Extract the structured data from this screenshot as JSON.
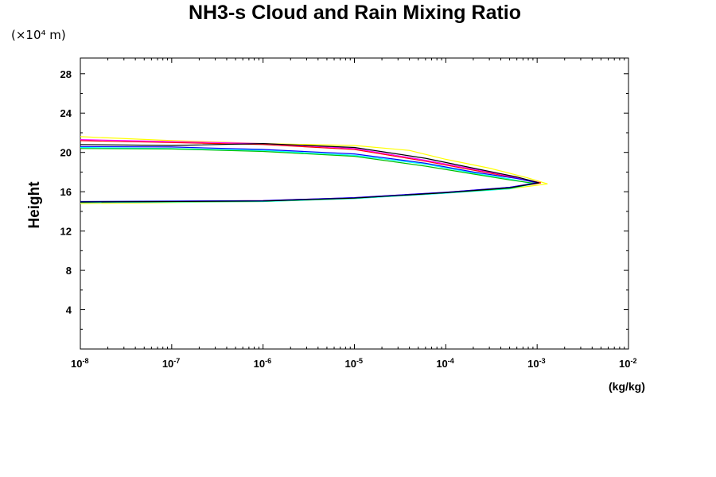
{
  "chart_data": {
    "type": "line",
    "title": "NH3-s Cloud and Rain Mixing Ratio",
    "ylabel": "Height",
    "y_unit": "(×10⁴ m)",
    "x_unit": "(kg/kg)",
    "x_scale": "log",
    "xlim": [
      1e-08,
      0.01
    ],
    "ylim": [
      0,
      29.6
    ],
    "x_tick_labels": [
      {
        "value": 1e-08,
        "base": "10",
        "exp": "-8"
      },
      {
        "value": 1e-07,
        "base": "10",
        "exp": "-7"
      },
      {
        "value": 1e-06,
        "base": "10",
        "exp": "-6"
      },
      {
        "value": 1e-05,
        "base": "10",
        "exp": "-5"
      },
      {
        "value": 0.0001,
        "base": "10",
        "exp": "-4"
      },
      {
        "value": 0.001,
        "base": "10",
        "exp": "-3"
      },
      {
        "value": 0.01,
        "base": "10",
        "exp": "-2"
      }
    ],
    "y_ticks": [
      4,
      8,
      12,
      16,
      20,
      24,
      28
    ],
    "grid": false,
    "legend": "none",
    "series": [
      {
        "color": "#ffff00",
        "points": [
          [
            1e-08,
            14.8
          ],
          [
            1e-06,
            15.0
          ],
          [
            1e-05,
            15.3
          ],
          [
            0.0001,
            15.9
          ],
          [
            0.0005,
            16.3
          ],
          [
            0.0013,
            16.8
          ],
          [
            0.0008,
            17.4
          ],
          [
            0.0003,
            18.4
          ],
          [
            0.0001,
            19.3
          ],
          [
            4e-05,
            20.2
          ],
          [
            1e-05,
            20.7
          ],
          [
            1e-06,
            20.9
          ],
          [
            1e-07,
            21.2
          ],
          [
            1e-08,
            21.6
          ]
        ]
      },
      {
        "color": "#ff0000",
        "points": [
          [
            1e-08,
            14.9
          ],
          [
            1e-06,
            15.05
          ],
          [
            1e-05,
            15.35
          ],
          [
            0.0001,
            15.9
          ],
          [
            0.0005,
            16.4
          ],
          [
            0.0011,
            16.9
          ],
          [
            0.0006,
            17.4
          ],
          [
            0.0002,
            18.2
          ],
          [
            6e-05,
            19.1
          ],
          [
            1e-05,
            20.3
          ],
          [
            1e-06,
            20.8
          ],
          [
            1e-07,
            21.0
          ],
          [
            1e-08,
            21.2
          ]
        ]
      },
      {
        "color": "#ff00ff",
        "points": [
          [
            1e-08,
            14.95
          ],
          [
            1e-06,
            15.1
          ],
          [
            1e-05,
            15.4
          ],
          [
            0.0001,
            15.95
          ],
          [
            0.0005,
            16.45
          ],
          [
            0.00105,
            16.95
          ],
          [
            0.0006,
            17.45
          ],
          [
            0.0002,
            18.3
          ],
          [
            6e-05,
            19.2
          ],
          [
            1e-05,
            20.4
          ],
          [
            1e-06,
            20.9
          ],
          [
            1e-07,
            21.1
          ],
          [
            1e-08,
            21.3
          ]
        ]
      },
      {
        "color": "#00ffff",
        "points": [
          [
            1e-08,
            14.9
          ],
          [
            1e-06,
            15.0
          ],
          [
            1e-05,
            15.3
          ],
          [
            0.0001,
            15.85
          ],
          [
            0.0005,
            16.3
          ],
          [
            0.0009,
            16.8
          ],
          [
            0.0005,
            17.3
          ],
          [
            0.0002,
            17.9
          ],
          [
            6e-05,
            18.8
          ],
          [
            1e-05,
            19.7
          ],
          [
            1e-06,
            20.2
          ],
          [
            1e-07,
            20.4
          ],
          [
            1e-08,
            20.5
          ]
        ]
      },
      {
        "color": "#00c000",
        "points": [
          [
            1e-08,
            14.95
          ],
          [
            1e-06,
            15.05
          ],
          [
            1e-05,
            15.35
          ],
          [
            0.0001,
            15.9
          ],
          [
            0.0005,
            16.35
          ],
          [
            0.00095,
            16.85
          ],
          [
            0.0005,
            17.2
          ],
          [
            0.0002,
            17.8
          ],
          [
            6e-05,
            18.6
          ],
          [
            1e-05,
            19.6
          ],
          [
            1e-06,
            20.1
          ],
          [
            1e-07,
            20.35
          ],
          [
            1e-08,
            20.4
          ]
        ]
      },
      {
        "color": "#0000ff",
        "points": [
          [
            1e-08,
            15.0
          ],
          [
            1e-06,
            15.1
          ],
          [
            1e-05,
            15.4
          ],
          [
            0.0001,
            15.95
          ],
          [
            0.0005,
            16.45
          ],
          [
            0.001,
            16.9
          ],
          [
            0.0006,
            17.35
          ],
          [
            0.0002,
            18.0
          ],
          [
            6e-05,
            18.9
          ],
          [
            1e-05,
            19.85
          ],
          [
            1e-06,
            20.3
          ],
          [
            1e-07,
            20.55
          ],
          [
            1e-08,
            20.6
          ]
        ]
      },
      {
        "color": "#000000",
        "points": [
          [
            1e-08,
            14.95
          ],
          [
            1e-06,
            15.05
          ],
          [
            1e-05,
            15.35
          ],
          [
            0.0001,
            15.9
          ],
          [
            0.0005,
            16.4
          ],
          [
            0.00105,
            16.9
          ],
          [
            0.0006,
            17.5
          ],
          [
            0.0002,
            18.4
          ],
          [
            6e-05,
            19.4
          ],
          [
            1e-05,
            20.5
          ],
          [
            1e-06,
            20.9
          ],
          [
            1e-07,
            20.7
          ],
          [
            1e-08,
            20.8
          ]
        ]
      }
    ]
  }
}
